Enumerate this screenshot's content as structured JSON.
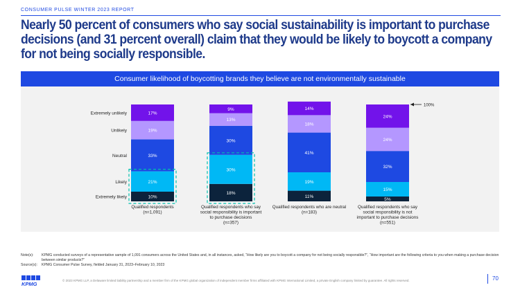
{
  "header": {
    "report_label": "CONSUMER PULSE WINTER 2023 REPORT",
    "headline": "Nearly 50 percent of consumers who say social sustainability is important to purchase decisions (and 31 percent overall) claim that they would be likely to boycott a company for not being socially responsible."
  },
  "colors": {
    "accent": "#1e49e2",
    "headline": "#1e3a8a",
    "extremely_unlikely": "#7213ea",
    "unlikely": "#b497ff",
    "neutral": "#1e49e2",
    "likely": "#00b8f5",
    "extremely_likely": "#0c233c",
    "highlight_border": "#00c0ae",
    "chart_bg": "#f2f2f2"
  },
  "chart_data": {
    "type": "bar",
    "stacked": true,
    "title": "Consumer likelihood of boycotting brands they believe are not environmentally sustainable",
    "categories": [
      [
        "Qualified respondents",
        "(n=1,091)"
      ],
      [
        "Qualified respondents who say",
        "social responsibility is important",
        "to purchase decisions",
        "(n=357)"
      ],
      [
        "Qualified respondents who are neutral",
        "(n=183)"
      ],
      [
        "Qualified respondents who say",
        "social responsibility is not",
        "important to purchase decisions",
        "(n=551)"
      ]
    ],
    "series": [
      {
        "name": "Extremely likely",
        "values": [
          10,
          18,
          11,
          5
        ]
      },
      {
        "name": "Likely",
        "values": [
          21,
          30,
          19,
          15
        ]
      },
      {
        "name": "Neutral",
        "values": [
          33,
          30,
          41,
          32
        ]
      },
      {
        "name": "Unlikely",
        "values": [
          19,
          13,
          18,
          24
        ]
      },
      {
        "name": "Extremely unlikely",
        "values": [
          17,
          9,
          14,
          24
        ]
      }
    ],
    "data_labels": [
      [
        "10%",
        "21%",
        "33%",
        "19%",
        "17%"
      ],
      [
        "18%",
        "30%",
        "30%",
        "13%",
        "9%"
      ],
      [
        "11%",
        "19%",
        "41%",
        "18%",
        "14%"
      ],
      [
        "5%",
        "15%",
        "32%",
        "24%",
        "24%"
      ]
    ],
    "highlighted_series": [
      "Extremely likely",
      "Likely"
    ],
    "highlighted_categories": [
      0,
      1
    ],
    "annotation": "100%",
    "ylim": [
      0,
      100
    ]
  },
  "notes": {
    "notes_label": "Note(s):",
    "notes_text": "KPMG conducted surveys of a representative sample of 1,091 consumers across the United States and, in all instances, asked, “How likely are you to boycott a company for not being socially responsible?”, “How important are the following criteria to you when making a purchase decision between similar products?”",
    "source_label": "Source(s):",
    "source_text": "KPMG Consumer Pulse Survey, fielded January 31, 2023–February 10, 2023"
  },
  "footer": {
    "logo": "KPMG",
    "legal": "© 2023 KPMG LLP, a Delaware limited liability partnership and a member firm of the KPMG global organization of independent member firms affiliated with KPMG International Limited, a private English company limited by guarantee. All rights reserved.",
    "page_number": "70"
  }
}
